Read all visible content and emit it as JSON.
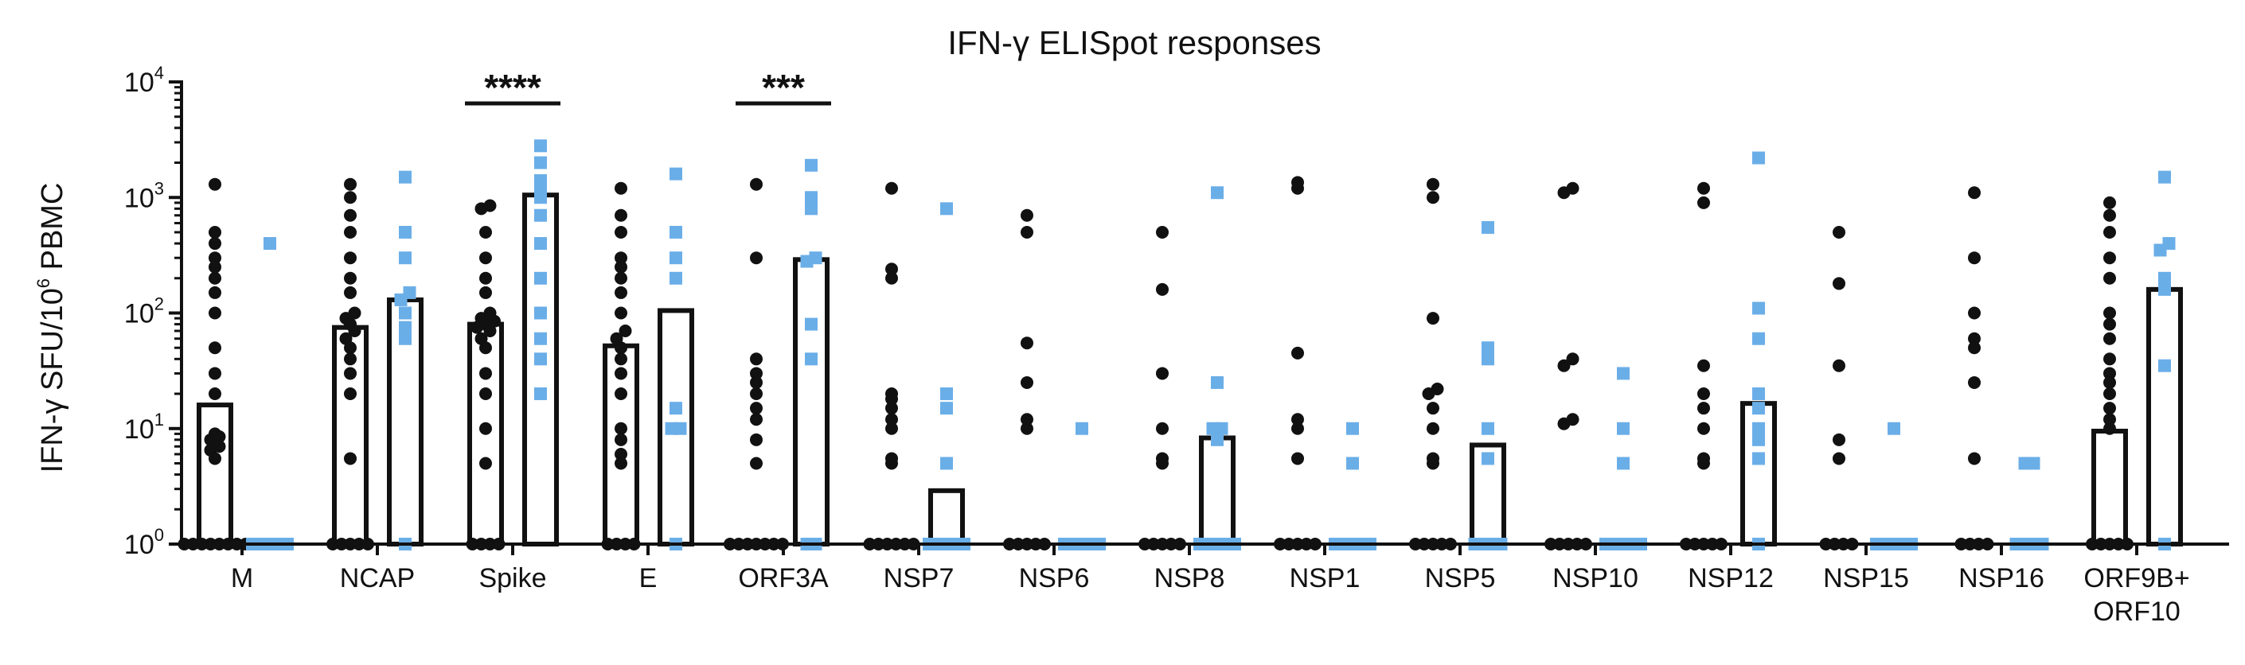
{
  "chart_data": {
    "type": "bar",
    "title": "IFN-γ ELISpot responses",
    "ylabel": {
      "pre": "IFN-γ  SFU/10",
      "sup": "6",
      "post": " PBMC"
    },
    "yscale": "log",
    "ylim": [
      1,
      10000
    ],
    "yticks": [
      {
        "base": "10",
        "exp": "0",
        "value": 1
      },
      {
        "base": "10",
        "exp": "1",
        "value": 10
      },
      {
        "base": "10",
        "exp": "2",
        "value": 100
      },
      {
        "base": "10",
        "exp": "3",
        "value": 1000
      },
      {
        "base": "10",
        "exp": "4",
        "value": 10000
      }
    ],
    "categories": [
      [
        "M"
      ],
      [
        "NCAP"
      ],
      [
        "Spike"
      ],
      [
        "E"
      ],
      [
        "ORF3A"
      ],
      [
        "NSP7"
      ],
      [
        "NSP6"
      ],
      [
        "NSP8"
      ],
      [
        "NSP1"
      ],
      [
        "NSP5"
      ],
      [
        "NSP10"
      ],
      [
        "NSP12"
      ],
      [
        "NSP15"
      ],
      [
        "NSP16"
      ],
      [
        "ORF9B+",
        "ORF10"
      ]
    ],
    "colors": {
      "group1": "#111111",
      "group2": "#6aaee8"
    },
    "series": [
      {
        "marker": "circle",
        "bars": [
          16,
          75,
          80,
          52,
          1,
          1,
          1,
          1,
          1,
          1,
          1,
          1,
          1,
          1,
          9.5
        ],
        "points": [
          [
            1,
            1,
            1,
            1,
            1,
            1,
            1,
            1,
            5.5,
            6.5,
            7,
            8,
            8.5,
            9,
            20,
            30,
            50,
            100,
            150,
            200,
            250,
            300,
            400,
            500,
            1300
          ],
          [
            1,
            1,
            1,
            1,
            1,
            5.5,
            20,
            30,
            40,
            50,
            60,
            70,
            80,
            90,
            100,
            150,
            200,
            300,
            500,
            700,
            1000,
            1300
          ],
          [
            1,
            1,
            1,
            1,
            5,
            10,
            20,
            30,
            50,
            60,
            70,
            75,
            80,
            85,
            90,
            100,
            150,
            200,
            300,
            500,
            800,
            850
          ],
          [
            1,
            1,
            1,
            1,
            5,
            6,
            8,
            10,
            20,
            30,
            40,
            50,
            60,
            70,
            100,
            150,
            200,
            250,
            300,
            500,
            700,
            1200
          ],
          [
            1,
            1,
            1,
            1,
            1,
            1,
            1,
            5,
            8,
            12,
            15,
            20,
            25,
            30,
            40,
            300,
            1300
          ],
          [
            1,
            1,
            1,
            1,
            1,
            1,
            5,
            5.5,
            10,
            12,
            15,
            18,
            20,
            200,
            240,
            1200
          ],
          [
            1,
            1,
            1,
            1,
            1,
            10,
            12,
            25,
            55,
            500,
            700
          ],
          [
            1,
            1,
            1,
            1,
            1,
            5,
            5.5,
            10,
            30,
            160,
            500
          ],
          [
            1,
            1,
            1,
            1,
            1,
            5.5,
            10,
            12,
            45,
            1200,
            1350
          ],
          [
            1,
            1,
            1,
            1,
            1,
            5,
            5.5,
            10,
            15,
            20,
            22,
            90,
            1000,
            1300
          ],
          [
            1,
            1,
            1,
            1,
            1,
            11,
            12,
            35,
            40,
            1100,
            1200
          ],
          [
            1,
            1,
            1,
            1,
            1,
            5,
            5.5,
            10,
            15,
            20,
            35,
            900,
            1200
          ],
          [
            1,
            1,
            1,
            1,
            5.5,
            8,
            35,
            180,
            500
          ],
          [
            1,
            1,
            1,
            1,
            5.5,
            25,
            50,
            60,
            100,
            300,
            1100
          ],
          [
            1,
            1,
            1,
            1,
            1,
            10,
            12,
            15,
            20,
            25,
            30,
            40,
            60,
            80,
            100,
            200,
            300,
            500,
            700,
            900
          ]
        ]
      },
      {
        "marker": "square",
        "bars": [
          1,
          130,
          1050,
          105,
          290,
          2.9,
          1,
          8.3,
          1,
          7.2,
          1,
          16.5,
          1,
          1,
          160
        ],
        "points": [
          [
            1,
            1,
            1,
            1,
            1,
            400
          ],
          [
            1,
            60,
            75,
            100,
            130,
            150,
            300,
            500,
            1500
          ],
          [
            20,
            40,
            60,
            100,
            200,
            400,
            700,
            1000,
            1200,
            1400,
            2000,
            2800
          ],
          [
            1,
            10,
            10,
            15,
            200,
            300,
            500,
            1600
          ],
          [
            1,
            1,
            40,
            80,
            280,
            300,
            800,
            1000,
            1900
          ],
          [
            1,
            1,
            1,
            1,
            1,
            5,
            15,
            20,
            800
          ],
          [
            1,
            1,
            1,
            1,
            1,
            10
          ],
          [
            1,
            1,
            1,
            1,
            1,
            8,
            10,
            10,
            25,
            1100
          ],
          [
            1,
            1,
            1,
            1,
            1,
            5,
            10
          ],
          [
            1,
            1,
            1,
            1,
            5.5,
            10,
            40,
            50,
            550
          ],
          [
            1,
            1,
            1,
            1,
            1,
            5,
            10,
            30
          ],
          [
            1,
            5.5,
            8,
            10,
            15,
            20,
            60,
            110,
            2200
          ],
          [
            1,
            1,
            1,
            1,
            1,
            10
          ],
          [
            1,
            1,
            1,
            1,
            5,
            5
          ],
          [
            1,
            35,
            160,
            200,
            350,
            400,
            1500
          ]
        ]
      }
    ],
    "significance": [
      {
        "category_index": 2,
        "label": "****"
      },
      {
        "category_index": 4,
        "label": "***"
      }
    ]
  }
}
